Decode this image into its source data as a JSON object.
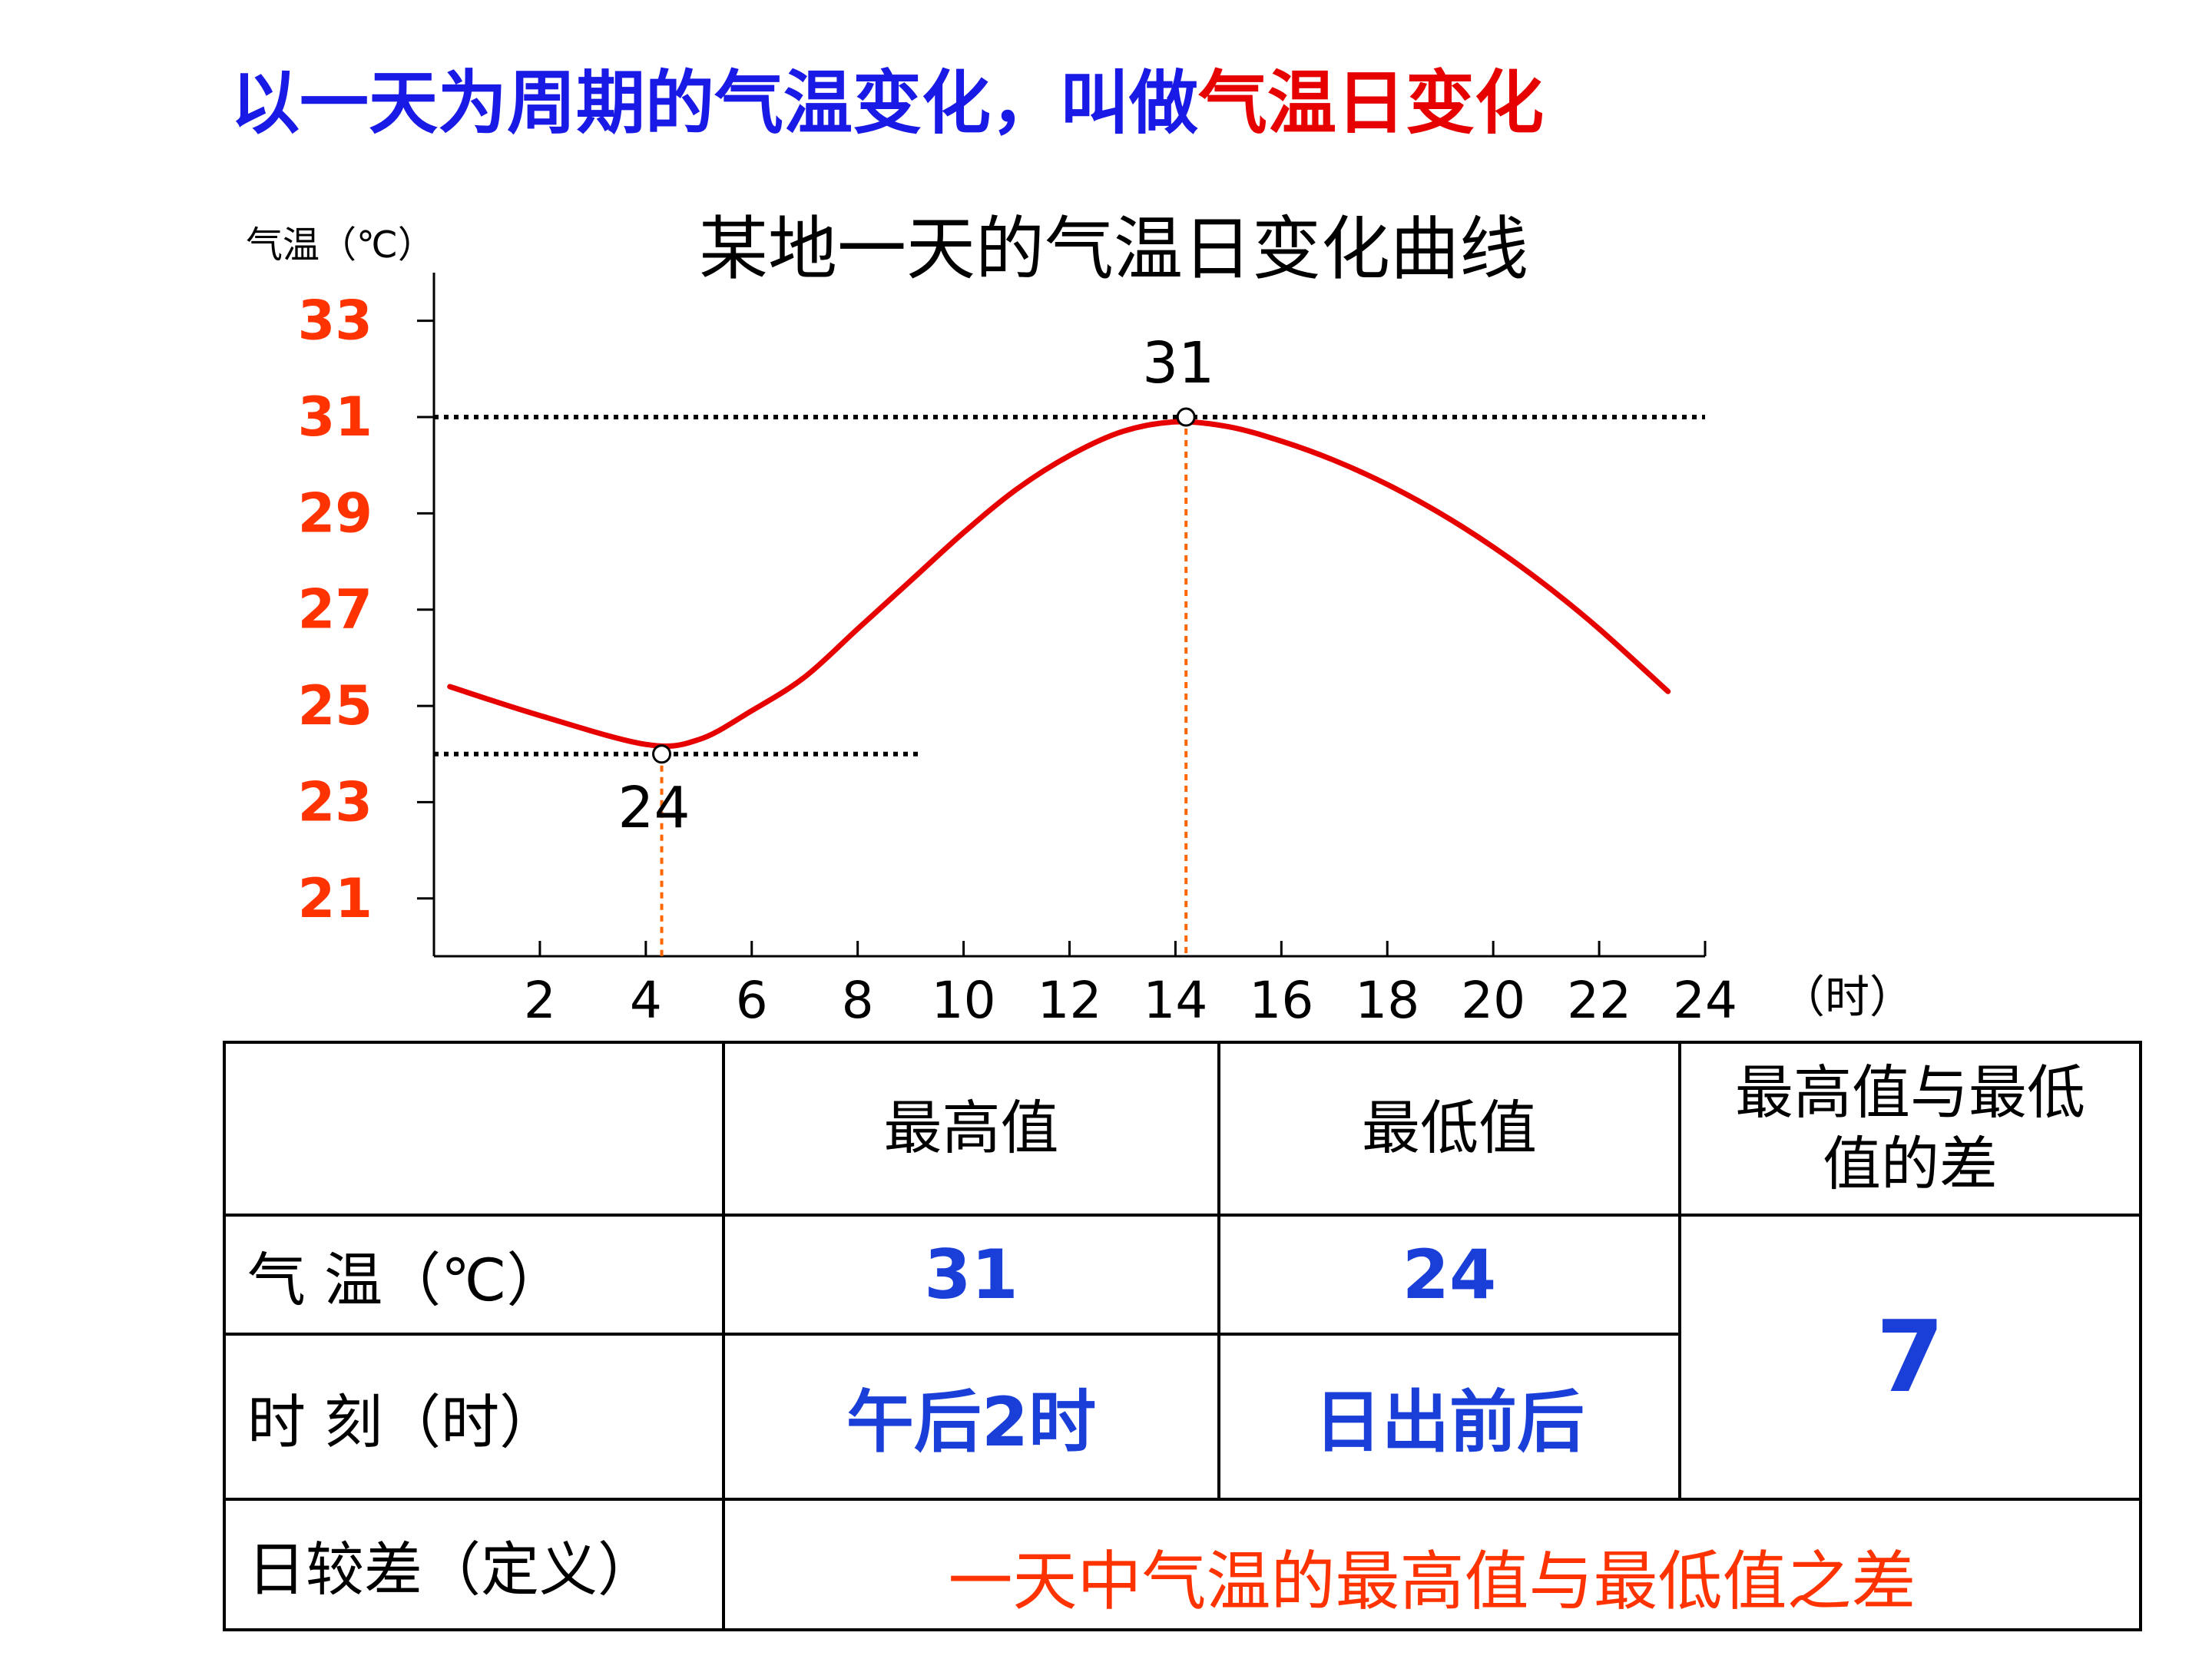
{
  "headline": {
    "part1": "以一天为周期的气温变化，叫做",
    "part2": "气温日变化",
    "color1": "#1a1ae6",
    "color2": "#e60000"
  },
  "chart_data": {
    "type": "line",
    "title": "某地一天的气温日变化曲线",
    "ylabel": "气温（℃）",
    "xlabel": "（时）",
    "x_ticks": [
      2,
      4,
      6,
      8,
      10,
      12,
      14,
      16,
      18,
      20,
      22,
      24
    ],
    "y_ticks": [
      21,
      23,
      25,
      27,
      29,
      31,
      33
    ],
    "xlim": [
      0,
      24
    ],
    "ylim": [
      19.8,
      34.0
    ],
    "series": [
      {
        "color": "#e60000",
        "x": [
          0.3,
          2,
          4,
          5,
          6,
          7,
          8,
          9,
          10,
          11,
          12,
          13,
          14,
          15,
          16,
          17,
          18,
          19,
          20,
          21,
          22,
          23.3
        ],
        "y": [
          25.4,
          24.8,
          24.2,
          24.3,
          24.9,
          25.6,
          26.6,
          27.6,
          28.6,
          29.5,
          30.2,
          30.7,
          30.9,
          30.8,
          30.5,
          30.1,
          29.6,
          29.0,
          28.3,
          27.5,
          26.6,
          25.3
        ]
      }
    ],
    "annotations": [
      {
        "x": 4.3,
        "y": 24,
        "label": "24"
      },
      {
        "x": 14.2,
        "y": 31,
        "label": "31"
      }
    ],
    "colors": {
      "tick_labels": "#ff3300",
      "guide_vertical": "#ff6600",
      "guide_horizontal": "#000000"
    },
    "grid": false
  },
  "table": {
    "headers": [
      "",
      "最高值",
      "最低值",
      "最高值与最低值的差"
    ],
    "rows": [
      {
        "label": "气 温（℃）",
        "max": "31",
        "min": "24"
      },
      {
        "label": "时 刻（时）",
        "max": "午后2时",
        "min": "日出前后"
      }
    ],
    "diff": "7",
    "range_label": "日较差（定义）",
    "range_definition": "一天中气温的最高值与最低值之差",
    "value_color": "#1a3fd9",
    "definition_color": "#ff3300"
  }
}
